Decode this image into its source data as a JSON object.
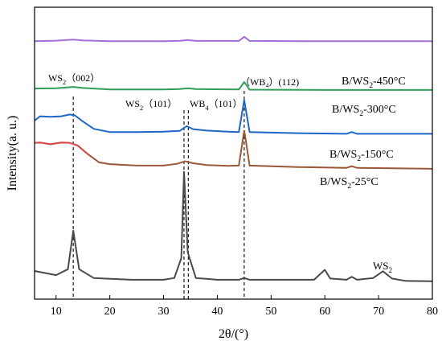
{
  "chart_data": {
    "type": "line",
    "xlabel": "2θ/(°)",
    "ylabel": "Intensity(a. u.)",
    "xlim": [
      6,
      80
    ],
    "x_ticks": [
      10,
      20,
      30,
      40,
      50,
      60,
      70,
      80
    ],
    "y_ticks_shown": false,
    "grid": false,
    "legend": "none (series labelled directly on plot)",
    "series": [
      {
        "name": "B/WS2-450°C",
        "label_main": "B/WS",
        "label_sub": "2",
        "label_tail": "-450°C",
        "color": "#a070d8",
        "stroke_width": 2,
        "points": [
          [
            6,
            0.8835
          ],
          [
            10,
            0.8855
          ],
          [
            12,
            0.8875
          ],
          [
            13.2,
            0.889
          ],
          [
            15,
            0.8865
          ],
          [
            20,
            0.8835
          ],
          [
            30,
            0.8835
          ],
          [
            33,
            0.885
          ],
          [
            34.5,
            0.8875
          ],
          [
            36,
            0.8845
          ],
          [
            44,
            0.8845
          ],
          [
            45,
            0.899
          ],
          [
            46,
            0.8845
          ],
          [
            60,
            0.8835
          ],
          [
            80,
            0.8835
          ]
        ]
      },
      {
        "name": "B/WS2-300°C",
        "label_main": "B/WS",
        "label_sub": "2",
        "label_tail": "-300°C",
        "color": "#2e9e58",
        "stroke_width": 2,
        "points": [
          [
            6,
            0.7215
          ],
          [
            10,
            0.7225
          ],
          [
            12,
            0.725
          ],
          [
            13.2,
            0.727
          ],
          [
            15,
            0.7235
          ],
          [
            20,
            0.7185
          ],
          [
            30,
            0.7185
          ],
          [
            33,
            0.7195
          ],
          [
            34.5,
            0.7225
          ],
          [
            36,
            0.7195
          ],
          [
            44,
            0.7185
          ],
          [
            45,
            0.7435
          ],
          [
            46,
            0.7175
          ],
          [
            60,
            0.7165
          ],
          [
            80,
            0.7165
          ]
        ]
      },
      {
        "name": "B/WS2-150°C",
        "label_main": "B/WS",
        "label_sub": "2",
        "label_tail": "-150°C",
        "color": "#1c66c8",
        "stroke_width": 2,
        "points": [
          [
            6,
            0.6115
          ],
          [
            7,
            0.6265
          ],
          [
            9,
            0.6245
          ],
          [
            11,
            0.6265
          ],
          [
            12.5,
            0.6325
          ],
          [
            13.5,
            0.6295
          ],
          [
            15,
            0.6085
          ],
          [
            17,
            0.5835
          ],
          [
            20,
            0.5725
          ],
          [
            25,
            0.5725
          ],
          [
            30,
            0.5735
          ],
          [
            33,
            0.5765
          ],
          [
            34.3,
            0.5925
          ],
          [
            35.5,
            0.5825
          ],
          [
            38,
            0.5775
          ],
          [
            42,
            0.5735
          ],
          [
            44,
            0.5725
          ],
          [
            45,
            0.6815
          ],
          [
            46,
            0.5725
          ],
          [
            55,
            0.5685
          ],
          [
            64,
            0.5665
          ],
          [
            65,
            0.5725
          ],
          [
            66,
            0.5665
          ],
          [
            80,
            0.5665
          ]
        ]
      },
      {
        "name": "B/WS2-25°C",
        "label_main": "B/WS",
        "label_sub": "2",
        "label_tail": "-25°C",
        "color": "#d84a4a",
        "color_alt": "#9a5838",
        "stroke_width": 2,
        "points": [
          [
            6,
            0.5355
          ],
          [
            7,
            0.5365
          ],
          [
            9,
            0.5305
          ],
          [
            11,
            0.5365
          ],
          [
            12.5,
            0.5355
          ],
          [
            14,
            0.5265
          ],
          [
            16,
            0.4955
          ],
          [
            18,
            0.4685
          ],
          [
            20,
            0.4625
          ],
          [
            25,
            0.4575
          ],
          [
            30,
            0.4575
          ],
          [
            32.5,
            0.4635
          ],
          [
            34,
            0.4725
          ],
          [
            35.5,
            0.4655
          ],
          [
            38,
            0.4595
          ],
          [
            42,
            0.4565
          ],
          [
            44,
            0.4575
          ],
          [
            45,
            0.5785
          ],
          [
            46,
            0.4575
          ],
          [
            55,
            0.4525
          ],
          [
            64,
            0.4495
          ],
          [
            65,
            0.4555
          ],
          [
            66,
            0.4495
          ],
          [
            80,
            0.4465
          ]
        ]
      },
      {
        "name": "WS2",
        "label_main": "WS",
        "label_sub": "2",
        "label_tail": "",
        "color": "#4a4a4a",
        "stroke_width": 2,
        "points": [
          [
            6,
            0.0965
          ],
          [
            10,
            0.0825
          ],
          [
            12.2,
            0.1025
          ],
          [
            13.2,
            0.2345
          ],
          [
            14.3,
            0.1025
          ],
          [
            17,
            0.0725
          ],
          [
            24,
            0.0665
          ],
          [
            30,
            0.0665
          ],
          [
            32,
            0.0725
          ],
          [
            33.3,
            0.1405
          ],
          [
            33.8,
            0.4365
          ],
          [
            34.5,
            0.1605
          ],
          [
            36,
            0.0725
          ],
          [
            40,
            0.0665
          ],
          [
            44,
            0.0665
          ],
          [
            45,
            0.0725
          ],
          [
            46,
            0.0665
          ],
          [
            50,
            0.0665
          ],
          [
            58,
            0.0665
          ],
          [
            60,
            0.1005
          ],
          [
            61,
            0.0705
          ],
          [
            64,
            0.0665
          ],
          [
            65,
            0.0765
          ],
          [
            66,
            0.0665
          ],
          [
            69,
            0.0725
          ],
          [
            70.8,
            0.0955
          ],
          [
            72.5,
            0.0705
          ],
          [
            75,
            0.0625
          ],
          [
            80,
            0.0615
          ]
        ]
      }
    ],
    "reference_lines": [
      {
        "x": 13.2,
        "label_main": "WS",
        "label_sub": "2",
        "label_tail": "（002）"
      },
      {
        "x": 33.8,
        "label_main": "WS",
        "label_sub": "2",
        "label_tail": "（101）"
      },
      {
        "x": 34.6,
        "label_main": "WB",
        "label_sub": "4",
        "label_tail": "（101）"
      },
      {
        "x": 45.0,
        "label_main": "（WB₄）(112)",
        "label_sub": "",
        "label_tail": ""
      }
    ]
  }
}
